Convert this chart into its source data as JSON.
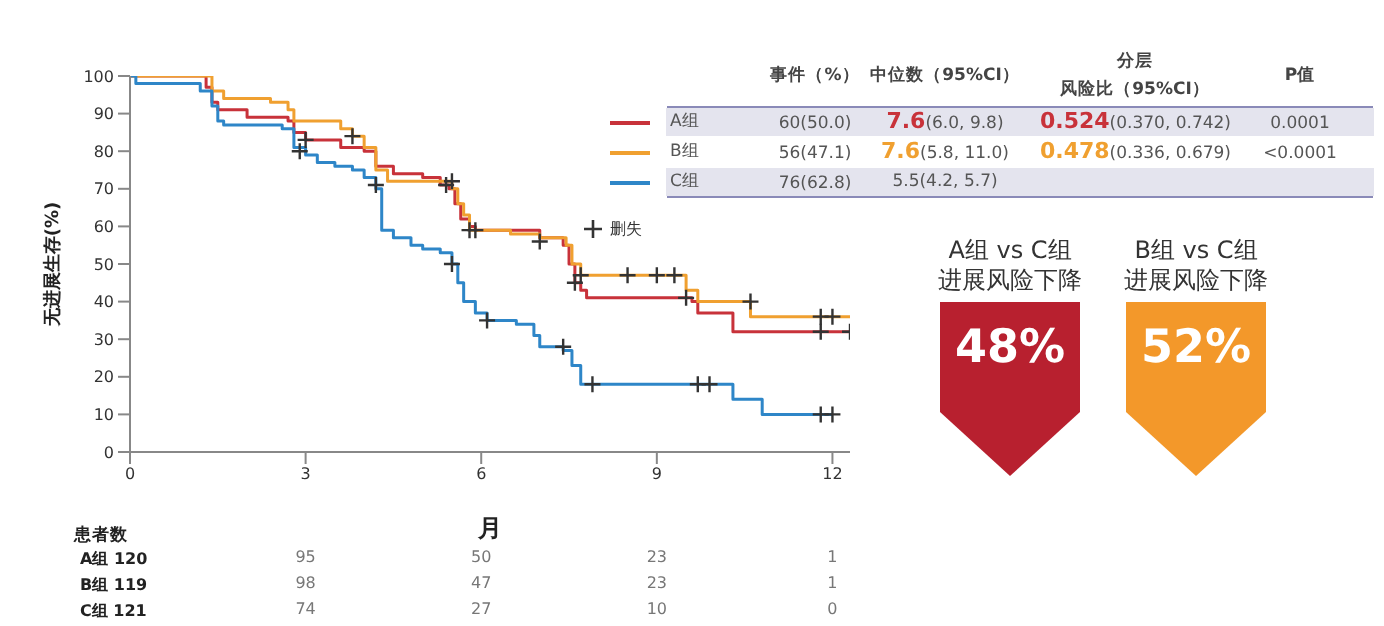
{
  "chart_data": [
    {
      "type": "step",
      "xlabel": "月",
      "ylabel": "无进展生存(%)",
      "xlim": [
        0,
        12.3
      ],
      "xticks": [
        0,
        3,
        6,
        9,
        12
      ],
      "ylim": [
        0,
        100
      ],
      "yticks": [
        0,
        10,
        20,
        30,
        40,
        50,
        60,
        70,
        80,
        90,
        100
      ],
      "legend": "top right",
      "marker": "none",
      "line_style": "solid",
      "series": [
        {
          "name": "A组",
          "color": "#c8323a",
          "x": [
            0,
            1.2,
            1.3,
            1.4,
            1.5,
            2.0,
            2.7,
            2.8,
            3.0,
            3.6,
            4.0,
            4.2,
            4.5,
            5.0,
            5.3,
            5.45,
            5.55,
            5.65,
            5.8,
            5.9,
            7.0,
            7.4,
            7.5,
            7.6,
            7.7,
            7.8,
            9.6,
            9.7,
            10.3,
            12.3
          ],
          "values": [
            100,
            100,
            97,
            93,
            91,
            89,
            88,
            85,
            83,
            81,
            80,
            76,
            74,
            73,
            71,
            70,
            66,
            62,
            60,
            59,
            57,
            55,
            50,
            45,
            43,
            41,
            40,
            37,
            32,
            32
          ]
        },
        {
          "name": "B组",
          "color": "#f0a030",
          "x": [
            0,
            1.3,
            1.4,
            1.6,
            2.4,
            2.7,
            2.8,
            3.6,
            3.8,
            4.0,
            4.2,
            4.4,
            5.5,
            5.6,
            5.7,
            5.8,
            6.5,
            7.0,
            7.45,
            7.55,
            7.7,
            9.5,
            9.7,
            10.6,
            12.3
          ],
          "values": [
            100,
            100,
            96,
            94,
            93,
            91,
            88,
            86,
            84,
            81,
            75,
            72,
            70,
            66,
            63,
            59,
            58,
            57,
            55,
            50,
            47,
            43,
            40,
            36,
            36
          ]
        },
        {
          "name": "C组",
          "color": "#2e86c8",
          "x": [
            0,
            0.1,
            1.0,
            1.2,
            1.4,
            1.5,
            1.6,
            2.6,
            2.8,
            3.0,
            3.2,
            3.5,
            3.8,
            4.0,
            4.2,
            4.3,
            4.5,
            4.8,
            5.0,
            5.3,
            5.5,
            5.6,
            5.7,
            5.9,
            6.1,
            6.6,
            6.9,
            7.0,
            7.4,
            7.55,
            7.7,
            9.8,
            10.3,
            10.8,
            12.0
          ],
          "values": [
            100,
            98,
            98,
            96,
            92,
            88,
            87,
            86,
            81,
            79,
            77,
            76,
            75,
            73,
            70,
            59,
            57,
            55,
            54,
            53,
            50,
            45,
            40,
            37,
            35,
            34,
            31,
            28,
            27,
            23,
            18,
            18,
            14,
            10,
            10
          ]
        },
        {
          "name": "删失",
          "type": "scatter",
          "marker": "cross",
          "color": "#333333",
          "x": [
            2.9,
            4.2,
            5.5,
            6.1,
            7.4,
            7.9,
            9.7,
            9.9,
            11.8,
            12.0,
            3.8,
            5.5,
            5.8,
            7.7,
            8.5,
            9.0,
            9.3,
            10.6,
            11.8,
            12.0,
            3.0,
            5.4,
            5.9,
            7.0,
            7.6,
            9.5,
            11.8,
            12.3
          ],
          "values": [
            80,
            71,
            50,
            35,
            28,
            18,
            18,
            18,
            10,
            10,
            84,
            72,
            59,
            47,
            47,
            47,
            47,
            40,
            36,
            36,
            83,
            71,
            59,
            56,
            45,
            41,
            32,
            32
          ]
        }
      ],
      "annotations": [
        "事件（%）",
        "中位数（95%CI）",
        "分层",
        "风险比（95%CI）",
        "P值",
        "60(50.0)",
        "7.6(6.0, 9.8)",
        "0.524(0.370, 0.742)",
        "0.0001",
        "56(47.1)",
        "7.6(5.8, 11.0)",
        "0.478(0.336, 0.679)",
        "<0.0001",
        "76(62.8)",
        "5.5(4.2, 5.7)",
        "患者数",
        "A组 120",
        "95",
        "50",
        "23",
        "1",
        "B组 119",
        "98",
        "47",
        "23",
        "1",
        "C组 121",
        "74",
        "27",
        "10",
        "0"
      ]
    },
    {
      "type": "other",
      "colors": [
        "#b8202f",
        "#f3982a"
      ],
      "annotations": [
        "A组 vs C组",
        "进展风险下降",
        "48%",
        "B组 vs C组",
        "进展风险下降",
        "52%"
      ]
    }
  ]
}
